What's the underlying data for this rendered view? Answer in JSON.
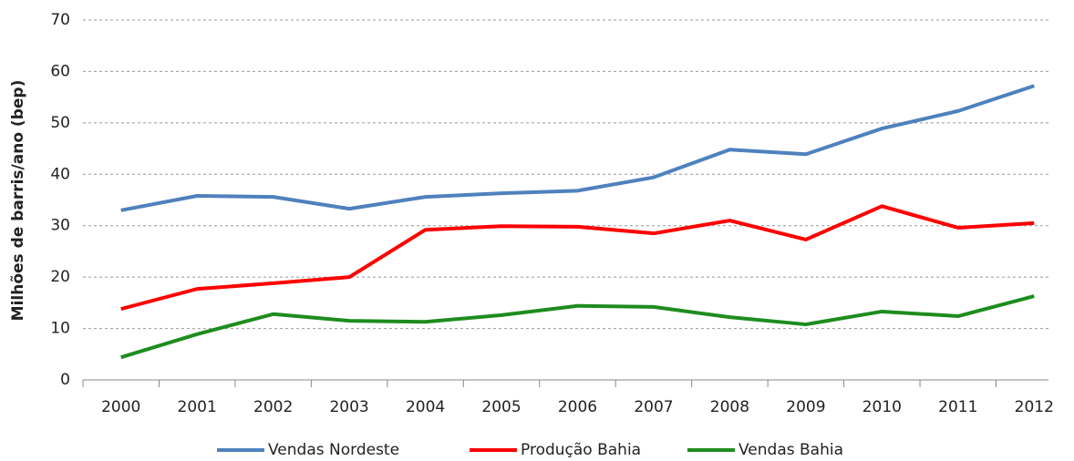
{
  "chart_data": {
    "type": "line",
    "y_label": "Milhões de barris/ano (bep)",
    "categories": [
      "2000",
      "2001",
      "2002",
      "2003",
      "2004",
      "2005",
      "2006",
      "2007",
      "2008",
      "2009",
      "2010",
      "2011",
      "2012"
    ],
    "series": [
      {
        "name": "Vendas Nordeste",
        "color": "#4f81bd",
        "values": [
          33,
          35.8,
          35.6,
          33.3,
          35.6,
          36.3,
          36.8,
          39.4,
          44.8,
          43.9,
          48.9,
          52.3,
          57.2
        ]
      },
      {
        "name": "Produção Bahia",
        "color": "#ff0000",
        "values": [
          13.8,
          17.7,
          18.8,
          20,
          29.2,
          29.9,
          29.8,
          28.5,
          31,
          27.3,
          33.8,
          29.6,
          30.5
        ]
      },
      {
        "name": "Vendas Bahia",
        "color": "#1e8c1e",
        "values": [
          4.4,
          8.9,
          12.8,
          11.5,
          11.3,
          12.6,
          14.4,
          14.2,
          12.2,
          10.8,
          13.3,
          12.4,
          16.3
        ]
      }
    ],
    "ylim": [
      0,
      70
    ],
    "yticks": [
      0,
      10,
      20,
      30,
      40,
      50,
      60,
      70
    ],
    "grid": true,
    "legend": "bottom"
  }
}
